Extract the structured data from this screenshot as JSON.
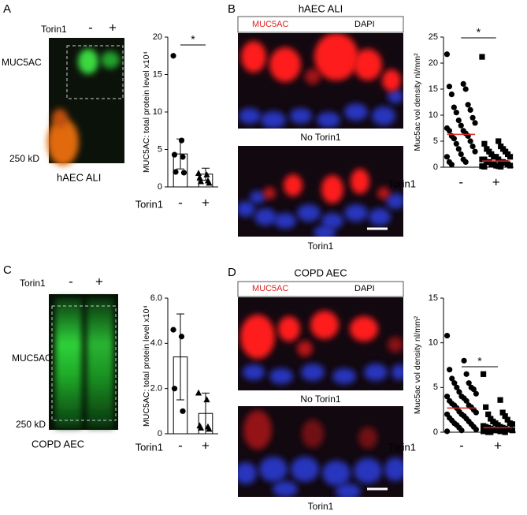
{
  "panels": [
    {
      "label": "A",
      "treatment": "Torin1",
      "conditions": [
        "-",
        "+"
      ],
      "band": "MUC5AC",
      "marker": "250 kD",
      "caption": "hAEC ALI"
    },
    {
      "label": "B",
      "title": "hAEC ALI",
      "stains": [
        "MUC5AC",
        "DAPI"
      ],
      "image_captions": [
        "No Torin1",
        "Torin1"
      ]
    },
    {
      "label": "C",
      "treatment": "Torin1",
      "conditions": [
        "-",
        "+"
      ],
      "band": "MUC5AC",
      "marker": "250 kD",
      "caption": "COPD AEC"
    },
    {
      "label": "D",
      "title": "COPD AEC",
      "stains": [
        "MUC5AC",
        "DAPI"
      ],
      "image_captions": [
        "No Torin1",
        "Torin1"
      ]
    }
  ],
  "chart_data": [
    {
      "type": "bar",
      "y_label": "MUC5AC: total protein level x10⁴",
      "x_label": "Torin1",
      "categories": [
        "-",
        "+"
      ],
      "values": [
        4.4,
        1.7
      ],
      "errors": [
        2.0,
        0.8
      ],
      "points": [
        [
          17.5,
          6.2,
          4.3,
          4.0,
          2.0,
          1.9
        ],
        [
          1.8,
          1.6,
          1.2,
          0.8,
          0.7,
          0.5
        ]
      ],
      "markers": [
        "circle",
        "triangle"
      ],
      "ylim": [
        0,
        20
      ],
      "yticks": [
        0,
        5,
        10,
        15,
        20
      ],
      "annotation": "*"
    },
    {
      "type": "strip",
      "y_label": "Muc5ac vol density nl/mm²",
      "x_label": "Torin1",
      "categories": [
        "-",
        "+"
      ],
      "points": [
        [
          21.7,
          16,
          15.5,
          15,
          14,
          12,
          11.5,
          11,
          10.5,
          9.5,
          9,
          8.5,
          8,
          7.5,
          7,
          7,
          6.5,
          6,
          6,
          5.5,
          5,
          4.5,
          4,
          3.5,
          3,
          2.5,
          2,
          1.5,
          1,
          1,
          0.5
        ],
        [
          21.2,
          5,
          4.5,
          4,
          3.5,
          3.5,
          3,
          3,
          2.5,
          2.5,
          2,
          2,
          2,
          1.5,
          1.5,
          1.5,
          1,
          1,
          1,
          1,
          0.8,
          0.5,
          0.5,
          0.5,
          0.3,
          0.3,
          0.2,
          0.2,
          0.1,
          0.1
        ]
      ],
      "markers": [
        "circle",
        "square"
      ],
      "medians": [
        6.3,
        1.2
      ],
      "median_color": "#e03030",
      "ylim": [
        0,
        25
      ],
      "yticks": [
        0,
        5,
        10,
        15,
        20,
        25
      ],
      "annotation": "*"
    },
    {
      "type": "bar",
      "y_label": "MUC5AC: total protein level x10⁴",
      "x_label": "Torin1",
      "categories": [
        "-",
        "+"
      ],
      "values": [
        3.4,
        0.9
      ],
      "errors": [
        1.9,
        0.9
      ],
      "points": [
        [
          4.6,
          4.3,
          2.0,
          1.0
        ],
        [
          1.8,
          1.5,
          0.35,
          0.3,
          0.25,
          0.2
        ]
      ],
      "markers": [
        "circle",
        "triangle"
      ],
      "ylim": [
        0,
        6
      ],
      "yticks": [
        0,
        {
          "value": 2,
          "label": "2.0"
        },
        {
          "value": 4,
          "label": "4.0"
        },
        {
          "value": 6,
          "label": "6.0"
        }
      ]
    },
    {
      "type": "strip",
      "y_label": "Muc5ac vol density nl/mm²",
      "x_label": "Torin1",
      "categories": [
        "-",
        "+"
      ],
      "points": [
        [
          10.8,
          8,
          7,
          6.5,
          6,
          5.5,
          5.5,
          5,
          5,
          4.8,
          4.5,
          4.3,
          4,
          4,
          3.8,
          3.5,
          3.5,
          3.2,
          3,
          3,
          2.8,
          2.7,
          2.5,
          2.3,
          2.2,
          2,
          2,
          1.8,
          1.6,
          1.5,
          1.3,
          1.2,
          1,
          0.9,
          0.8,
          0.6,
          0.5,
          0.3,
          0.2,
          0.1
        ],
        [
          6.5,
          3.6,
          2.8,
          2.2,
          2,
          1.8,
          1.5,
          1.4,
          1.2,
          1,
          1,
          0.9,
          0.8,
          0.7,
          0.6,
          0.6,
          0.5,
          0.5,
          0.4,
          0.4,
          0.3,
          0.3,
          0.3,
          0.2,
          0.2,
          0.2,
          0.1,
          0.1,
          0.1,
          0.1,
          0,
          0,
          0
        ]
      ],
      "markers": [
        "circle",
        "square"
      ],
      "medians": [
        2.7,
        0.5
      ],
      "median_color": "#e03030",
      "ylim": [
        0,
        15
      ],
      "yticks": [
        0,
        5,
        10,
        15
      ],
      "annotation": "*"
    }
  ]
}
